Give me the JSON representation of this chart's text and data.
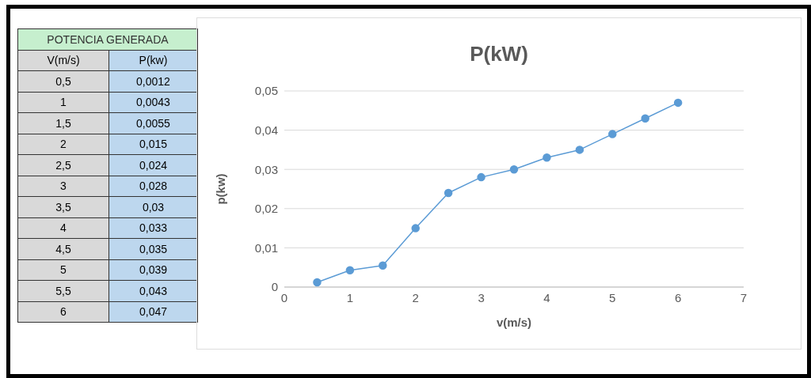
{
  "chart_data": {
    "type": "line",
    "title": "P(kW)",
    "xlabel": "v(m/s)",
    "ylabel": "p(kw)",
    "x": [
      0.5,
      1,
      1.5,
      2,
      2.5,
      3,
      3.5,
      4,
      4.5,
      5,
      5.5,
      6
    ],
    "series": [
      {
        "color": "#5b9bd5",
        "values": [
          0.0012,
          0.0043,
          0.0055,
          0.015,
          0.024,
          0.028,
          0.03,
          0.033,
          0.035,
          0.039,
          0.043,
          0.047
        ]
      }
    ],
    "xlim": [
      0,
      7
    ],
    "xticks": [
      0,
      1,
      2,
      3,
      4,
      5,
      6,
      7
    ],
    "ylim": [
      0,
      0.05
    ],
    "yticks": [
      0,
      {
        "value": 0.01,
        "label": "0,01"
      },
      {
        "value": 0.02,
        "label": "0,02"
      },
      {
        "value": 0.03,
        "label": "0,03"
      },
      {
        "value": 0.04,
        "label": "0,04"
      },
      {
        "value": 0.05,
        "label": "0,05"
      }
    ],
    "grid": "y",
    "marker": "circle",
    "line_style": "solid",
    "annotations": [
      "POTENCIA GENERADA",
      "V(m/s)",
      "P(kw)",
      "0,5",
      "0,0012",
      "1",
      "0,0043",
      "1,5",
      "0,0055",
      "2",
      "0,015",
      "2,5",
      "0,024",
      "3",
      "0,028",
      "3,5",
      "0,03",
      "4",
      "0,033",
      "4,5",
      "0,035",
      "5",
      "0,039",
      "5,5",
      "0,043",
      "6",
      "0,047"
    ]
  }
}
